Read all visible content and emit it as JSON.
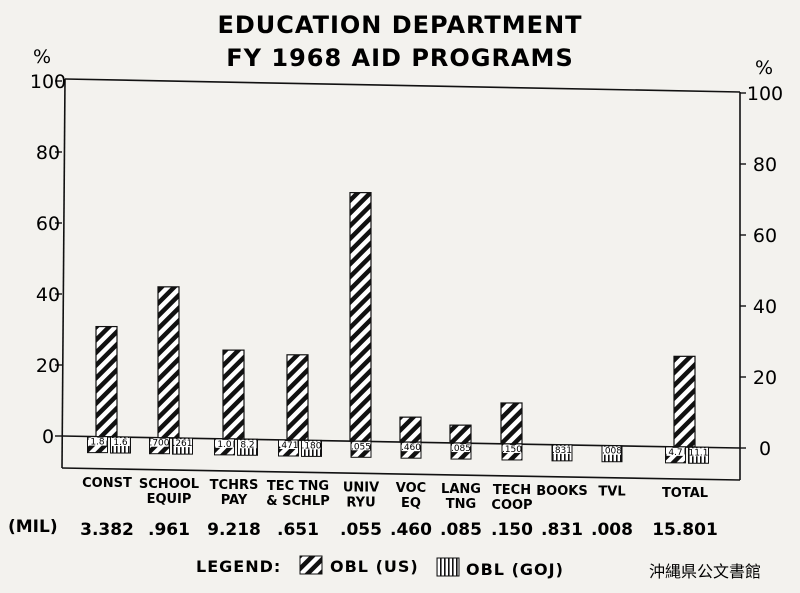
{
  "chart_data": {
    "type": "bar",
    "title": "EDUCATION DEPARTMENT",
    "subtitle": "FY 1968 AID PROGRAMS",
    "ylabel_left": "%",
    "ylabel_right": "%",
    "ylim": [
      0,
      100
    ],
    "yticks": [
      "0",
      "20",
      "40",
      "60",
      "80",
      "100"
    ],
    "categories": [
      [
        "CONST"
      ],
      [
        "SCHOOL",
        "EQUIP"
      ],
      [
        "TCHRS",
        "PAY"
      ],
      [
        "TEC TNG",
        "& SCHLP"
      ],
      [
        "UNIV",
        "RYU"
      ],
      [
        "VOC",
        "EQ"
      ],
      [
        "LANG",
        "TNG"
      ],
      [
        "TECH",
        "COOP"
      ],
      [
        "BOOKS"
      ],
      [
        "TVL"
      ],
      [
        "TOTAL"
      ]
    ],
    "series": [
      {
        "name": "OBL (US)",
        "values": [
          31,
          42.5,
          25,
          24,
          70,
          7,
          5,
          11.5,
          0,
          0,
          25.5
        ],
        "labels": [
          "1.8",
          ".700",
          "1.0",
          ".471",
          ".055",
          ".460",
          ".085",
          ".150",
          "",
          "",
          "4.7"
        ]
      },
      {
        "name": "OBL (GOJ)",
        "values": [
          null,
          null,
          null,
          null,
          null,
          null,
          null,
          null,
          null,
          null,
          null
        ],
        "labels": [
          "1.6",
          ".261",
          "8.2",
          ".180",
          "",
          "",
          "",
          "",
          ".831",
          ".008",
          "11.1"
        ]
      }
    ],
    "mil_label": "(MIL)",
    "mil_values": [
      "3.382",
      ".961",
      "9.218",
      ".651",
      ".055",
      ".460",
      ".085",
      ".150",
      ".831",
      ".008",
      "15.801"
    ],
    "legend_title": "LEGEND:"
  },
  "watermark": "沖縄県公文書館"
}
